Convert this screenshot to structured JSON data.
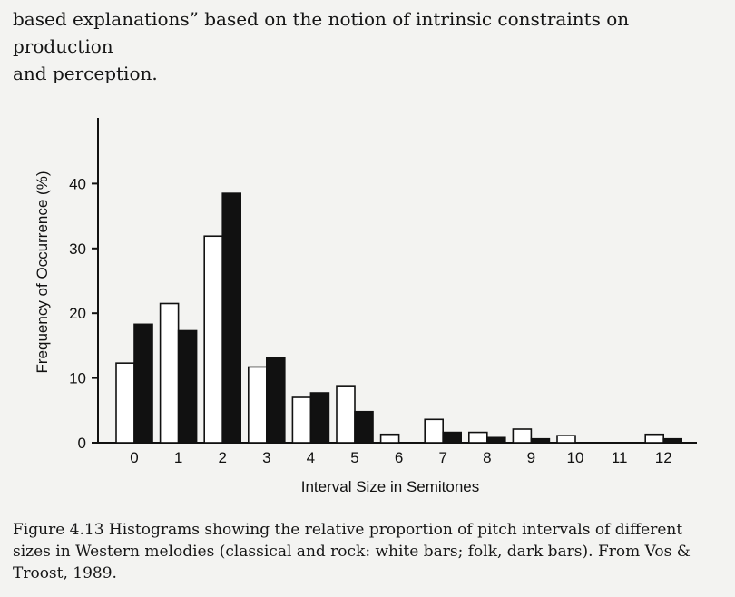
{
  "page": {
    "top_text": {
      "line1": "based explanations” based on the notion of intrinsic constraints on production",
      "line2": "and perception."
    },
    "caption": {
      "line1": "Figure 4.13 Histograms showing the relative proportion of pitch intervals of different",
      "line2": "sizes in Western melodies (classical and rock: white bars; folk, dark bars). From Vos &",
      "line3": "Troost, 1989."
    }
  },
  "chart_data": {
    "type": "bar",
    "title": "",
    "xlabel": "Interval Size in Semitones",
    "ylabel": "Frequency of Occurrence (%)",
    "ylim": [
      0,
      50
    ],
    "yticks": [
      0,
      10,
      20,
      30,
      40
    ],
    "grid": false,
    "categories": [
      "0",
      "1",
      "2",
      "3",
      "4",
      "5",
      "6",
      "7",
      "8",
      "9",
      "10",
      "11",
      "12"
    ],
    "series": [
      {
        "color": "#ffffff",
        "values": [
          12.3,
          21.5,
          31.9,
          11.7,
          7.0,
          8.8,
          1.3,
          3.6,
          1.6,
          2.1,
          1.1,
          0,
          1.3
        ]
      },
      {
        "color": "#111111",
        "values": [
          18.3,
          17.3,
          38.5,
          13.1,
          7.7,
          4.8,
          0,
          1.6,
          0.8,
          0.6,
          0,
          0,
          0.6
        ]
      }
    ]
  }
}
